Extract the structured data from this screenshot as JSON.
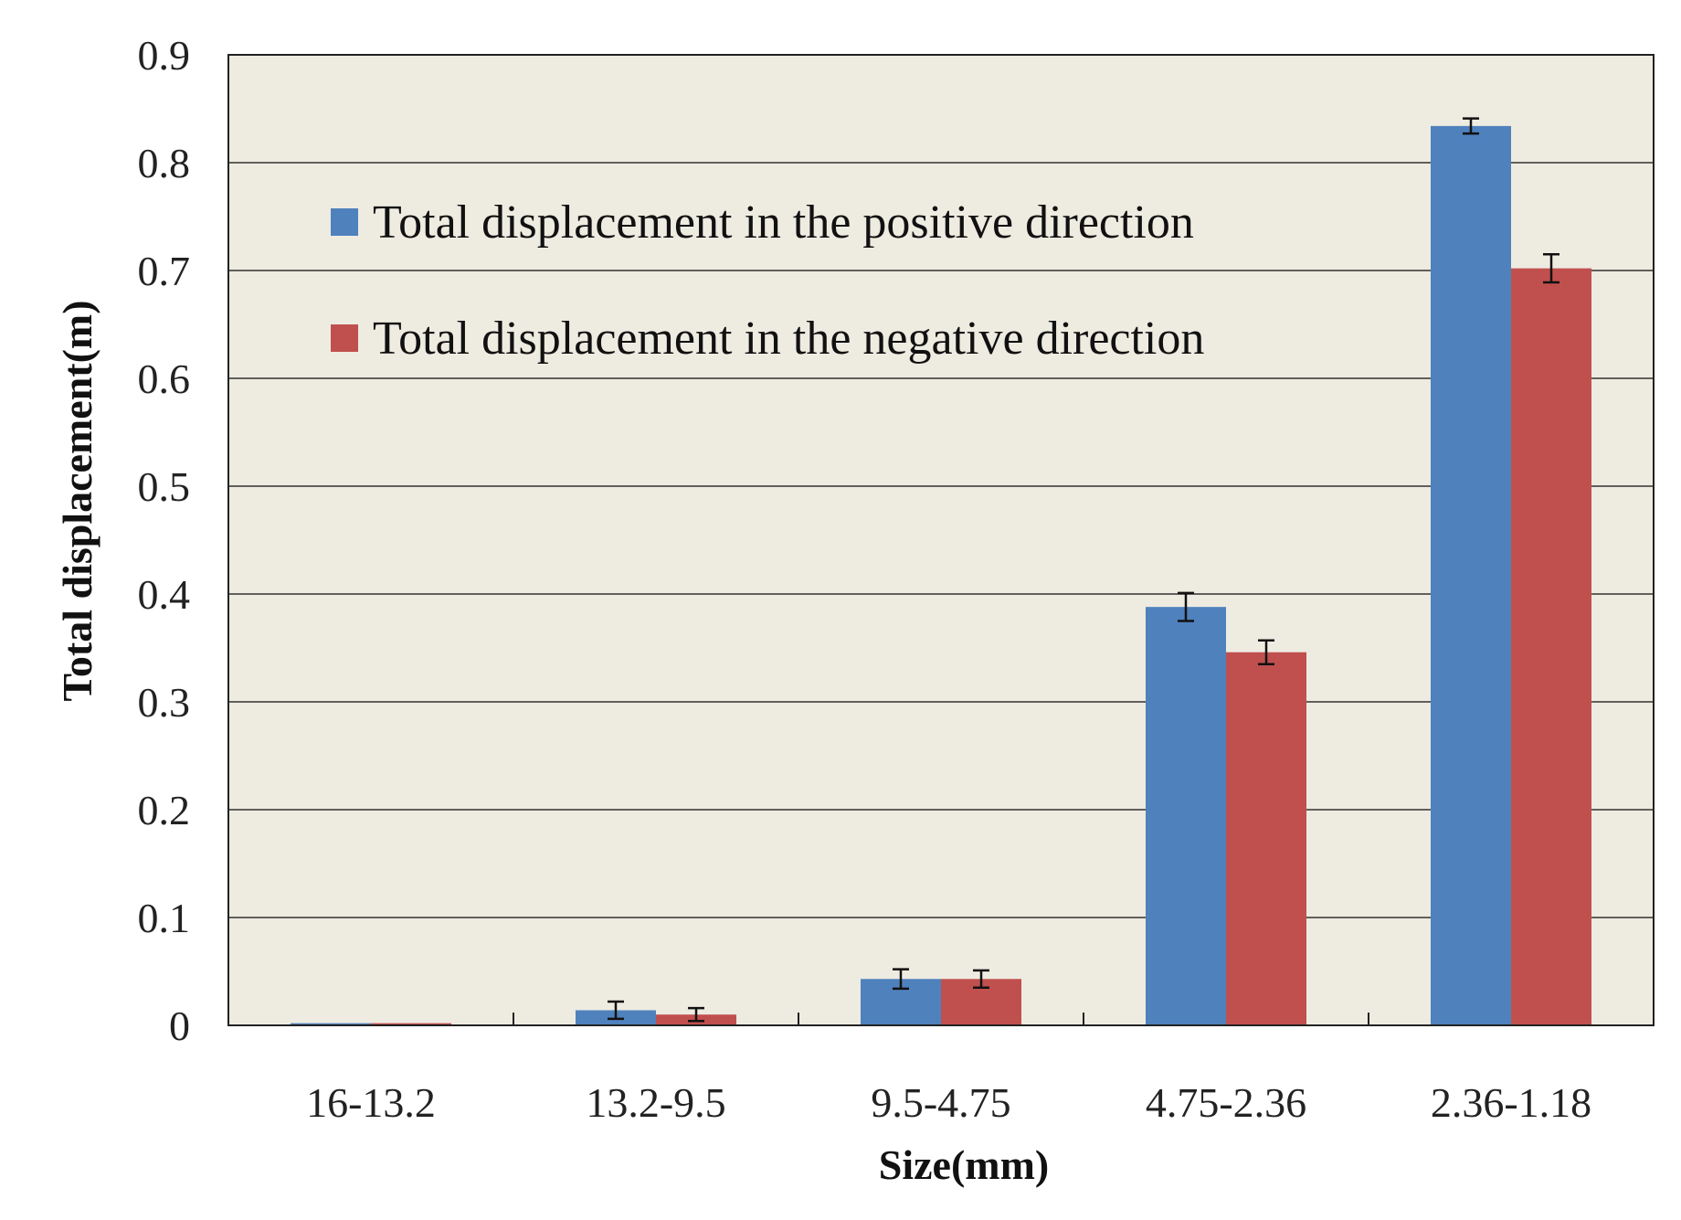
{
  "chart_data": {
    "type": "bar",
    "title": "",
    "xlabel": "Size(mm)",
    "ylabel": "Total displacement(m)",
    "ylim": [
      0,
      0.9
    ],
    "yticks": [
      "0",
      "0.1",
      "0.2",
      "0.3",
      "0.4",
      "0.5",
      "0.6",
      "0.7",
      "0.8",
      "0.9"
    ],
    "grid": true,
    "legend_position": "top-left",
    "categories": [
      "16-13.2",
      "13.2-9.5",
      "9.5-4.75",
      "4.75-2.36",
      "2.36-1.18"
    ],
    "series": [
      {
        "name": "Total displacement in the positive direction",
        "color": "#4F81BD",
        "values": [
          0.002,
          0.014,
          0.043,
          0.388,
          0.834
        ],
        "errors": [
          0.0,
          0.008,
          0.009,
          0.013,
          0.007
        ]
      },
      {
        "name": "Total displacement in the negative direction",
        "color": "#C0504D",
        "values": [
          0.002,
          0.01,
          0.043,
          0.346,
          0.702
        ],
        "errors": [
          0.0,
          0.006,
          0.008,
          0.011,
          0.013
        ]
      }
    ],
    "plot_background": "#EEEBE1",
    "gridline_color": "#333333"
  }
}
